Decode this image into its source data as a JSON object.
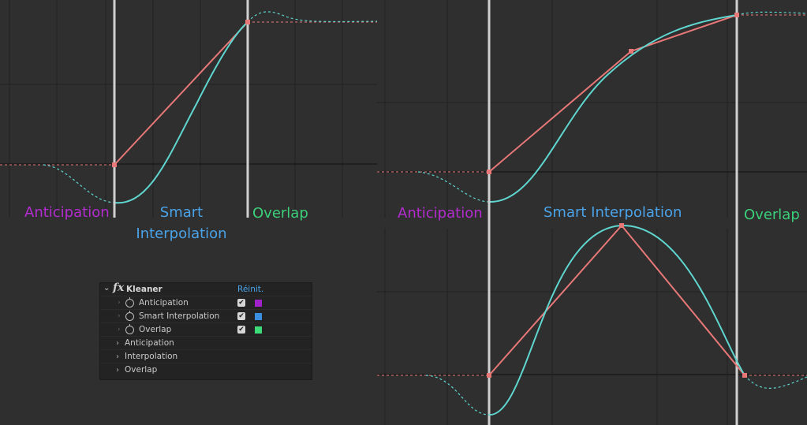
{
  "labels": {
    "anticipation": "Anticipation",
    "smart_line1": "Smart",
    "smart_line2": "Interpolation",
    "smart_full": "Smart Interpolation",
    "overlap": "Overlap"
  },
  "colors": {
    "anticipation": "#b42cd0",
    "smart": "#4aa3e8",
    "overlap": "#3bd07a",
    "linear_curve": "#e87878",
    "smooth_curve": "#5fd6cf",
    "marker_line": "#d0d0d0",
    "grid": "#232323"
  },
  "panel": {
    "title": "Kleaner",
    "reset": "Réinit.",
    "fx": "fx",
    "props": [
      {
        "name": "Anticipation",
        "checked": true,
        "color": "#a022c8"
      },
      {
        "name": "Smart Interpolation",
        "checked": true,
        "color": "#3a8fe0"
      },
      {
        "name": "Overlap",
        "checked": true,
        "color": "#3cdc78"
      }
    ],
    "sections": [
      "Anticipation",
      "Interpolation",
      "Overlap"
    ]
  }
}
